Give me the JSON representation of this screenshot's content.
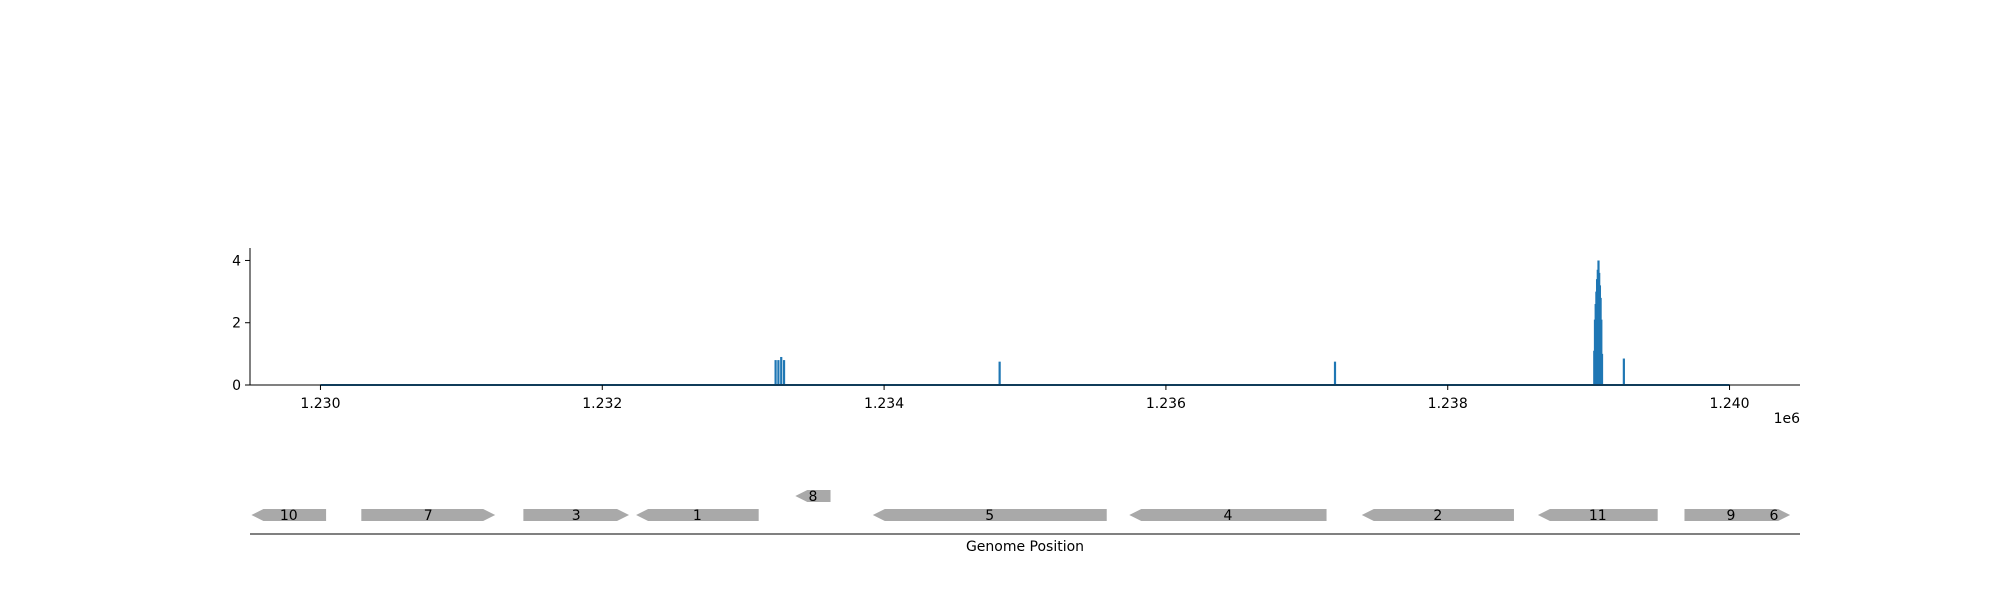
{
  "chart_data": [
    {
      "type": "bar",
      "x_range": [
        1229500,
        1240500
      ],
      "ylim": [
        0,
        4.4
      ],
      "x_ticks": [
        1230000,
        1232000,
        1234000,
        1236000,
        1238000,
        1240000
      ],
      "x_tick_labels": [
        "1.230",
        "1.232",
        "1.234",
        "1.236",
        "1.238",
        "1.240"
      ],
      "x_offset_label": "1e6",
      "y_ticks": [
        0,
        2,
        4
      ],
      "y_tick_labels": [
        "0",
        "2",
        "4"
      ],
      "color": "#1f77b4",
      "baseline": [
        1230000,
        1240000
      ],
      "series": [
        {
          "x": [
            1233230,
            1233250,
            1233270,
            1233290,
            1234820,
            1237200,
            1239040,
            1239045,
            1239050,
            1239055,
            1239060,
            1239065,
            1239070,
            1239075,
            1239080,
            1239085,
            1239090,
            1239095,
            1239250
          ],
          "values": [
            0.8,
            0.8,
            0.9,
            0.8,
            0.75,
            0.75,
            1.1,
            2.1,
            2.6,
            3.0,
            3.4,
            3.7,
            4.0,
            3.6,
            3.2,
            2.8,
            2.1,
            1.0,
            0.85
          ]
        }
      ]
    },
    {
      "type": "gene_track",
      "xlabel": "Genome Position",
      "x_range": [
        1229500,
        1240500
      ],
      "feature_color": "#a9a9a9",
      "features": [
        {
          "label": "10",
          "start": 1229510,
          "end": 1230040,
          "strand": "-",
          "row": 0
        },
        {
          "label": "7",
          "start": 1230290,
          "end": 1231240,
          "strand": "+",
          "row": 0
        },
        {
          "label": "3",
          "start": 1231440,
          "end": 1232190,
          "strand": "+",
          "row": 0
        },
        {
          "label": "1",
          "start": 1232240,
          "end": 1233110,
          "strand": "-",
          "row": 0
        },
        {
          "label": "8",
          "start": 1233370,
          "end": 1233620,
          "strand": "-",
          "row": 1
        },
        {
          "label": "5",
          "start": 1233920,
          "end": 1235580,
          "strand": "-",
          "row": 0
        },
        {
          "label": "4",
          "start": 1235740,
          "end": 1237140,
          "strand": "-",
          "row": 0
        },
        {
          "label": "2",
          "start": 1237390,
          "end": 1238470,
          "strand": "-",
          "row": 0
        },
        {
          "label": "11",
          "start": 1238640,
          "end": 1239490,
          "strand": "-",
          "row": 0
        },
        {
          "label": "9",
          "start": 1239680,
          "end": 1240340,
          "strand": "+",
          "row": 0
        },
        {
          "label": "6",
          "start": 1240200,
          "end": 1240430,
          "strand": "+",
          "row": 0
        }
      ]
    }
  ]
}
